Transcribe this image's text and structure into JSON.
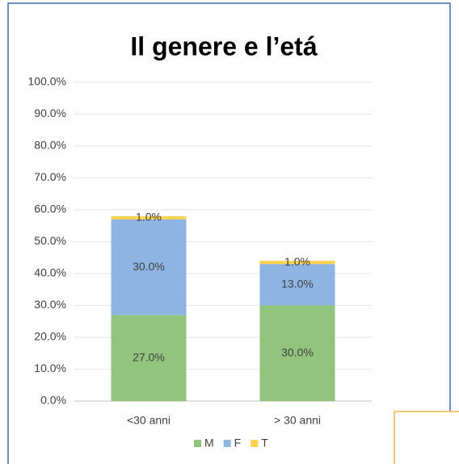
{
  "chart_data": {
    "type": "stacked_bar",
    "title": "Il genere e l’etá",
    "categories": [
      "<30 anni",
      "> 30 anni"
    ],
    "series": [
      {
        "name": "M",
        "color": "#93c47d",
        "values": [
          27,
          30
        ],
        "value_labels": [
          "27.0%",
          "30.0%"
        ]
      },
      {
        "name": "F",
        "color": "#8eb4e3",
        "values": [
          30,
          13
        ],
        "value_labels": [
          "30.0%",
          "13.0%"
        ]
      },
      {
        "name": "T",
        "color": "#ffd34d",
        "values": [
          1,
          1
        ],
        "value_labels": [
          "1.0%",
          "1.0%"
        ]
      }
    ],
    "ylim": [
      0,
      100
    ],
    "yticks": [
      {
        "value": 0,
        "label": "0.0%"
      },
      {
        "value": 10,
        "label": "10.0%"
      },
      {
        "value": 20,
        "label": "20.0%"
      },
      {
        "value": 30,
        "label": "30.0%"
      },
      {
        "value": 40,
        "label": "40.0%"
      },
      {
        "value": 50,
        "label": "50.0%"
      },
      {
        "value": 60,
        "label": "60.0%"
      },
      {
        "value": 70,
        "label": "70.0%"
      },
      {
        "value": 80,
        "label": "80.0%"
      },
      {
        "value": 90,
        "label": "90.0%"
      },
      {
        "value": 100,
        "label": "100.0%"
      }
    ],
    "grid": true,
    "legend": "bottom"
  }
}
